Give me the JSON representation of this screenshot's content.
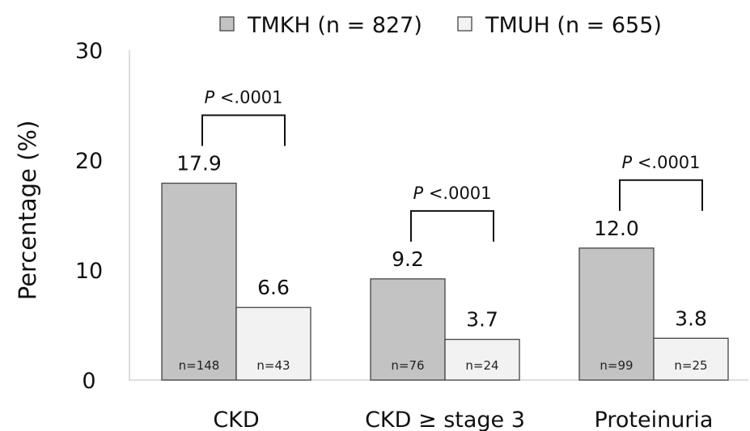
{
  "chart_data": {
    "type": "bar",
    "title": "",
    "xlabel": "",
    "ylabel": "Percentage (%)",
    "ylim": [
      0,
      30
    ],
    "yticks": [
      0,
      10,
      20,
      30
    ],
    "grid": false,
    "legend_position": "top",
    "categories": [
      "CKD",
      "CKD ≥ stage 3",
      "Proteinuria"
    ],
    "series": [
      {
        "name": "TMKH (n = 827)",
        "color": "#c3c3c3",
        "values": [
          17.9,
          9.2,
          12.0
        ],
        "value_labels": [
          "17.9",
          "9.2",
          "12.0"
        ],
        "counts": [
          "n=148",
          "n=76",
          "n=99"
        ]
      },
      {
        "name": "TMUH (n = 655)",
        "color": "#f2f2f2",
        "values": [
          6.6,
          3.7,
          3.8
        ],
        "value_labels": [
          "6.6",
          "3.7",
          "3.8"
        ],
        "counts": [
          "n=43",
          "n=24",
          "n=25"
        ]
      }
    ],
    "annotations": [
      {
        "category": "CKD",
        "prefix": "P",
        "text": " <.0001"
      },
      {
        "category": "CKD ≥ stage 3",
        "prefix": "P",
        "text": " <.0001"
      },
      {
        "category": "Proteinuria",
        "prefix": "P",
        "text": " <.0001"
      }
    ]
  }
}
